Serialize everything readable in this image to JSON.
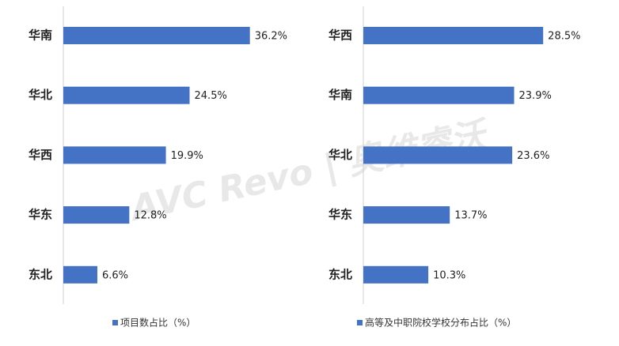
{
  "watermark": "AVC Revo | 奥维睿沃",
  "chart_data": [
    {
      "type": "bar",
      "orientation": "horizontal",
      "categories": [
        "华南",
        "华北",
        "华西",
        "华东",
        "东北"
      ],
      "series": [
        {
          "name": "项目数占比（%）",
          "color": "#4472c4",
          "values": [
            36.2,
            24.5,
            19.9,
            12.8,
            6.6
          ],
          "value_labels": [
            "36.2%",
            "24.5%",
            "19.9%",
            "12.8%",
            "6.6%"
          ]
        }
      ],
      "xlim": [
        0,
        45
      ],
      "legend": "bottom"
    },
    {
      "type": "bar",
      "orientation": "horizontal",
      "categories": [
        "华西",
        "华南",
        "华北",
        "华东",
        "东北"
      ],
      "series": [
        {
          "name": "高等及中职院校学校分布占比（%）",
          "color": "#4472c4",
          "values": [
            28.5,
            23.9,
            23.6,
            13.7,
            10.3
          ],
          "value_labels": [
            "28.5%",
            "23.9%",
            "23.6%",
            "13.7%",
            "10.3%"
          ]
        }
      ],
      "xlim": [
        0,
        35
      ],
      "legend": "bottom"
    }
  ]
}
